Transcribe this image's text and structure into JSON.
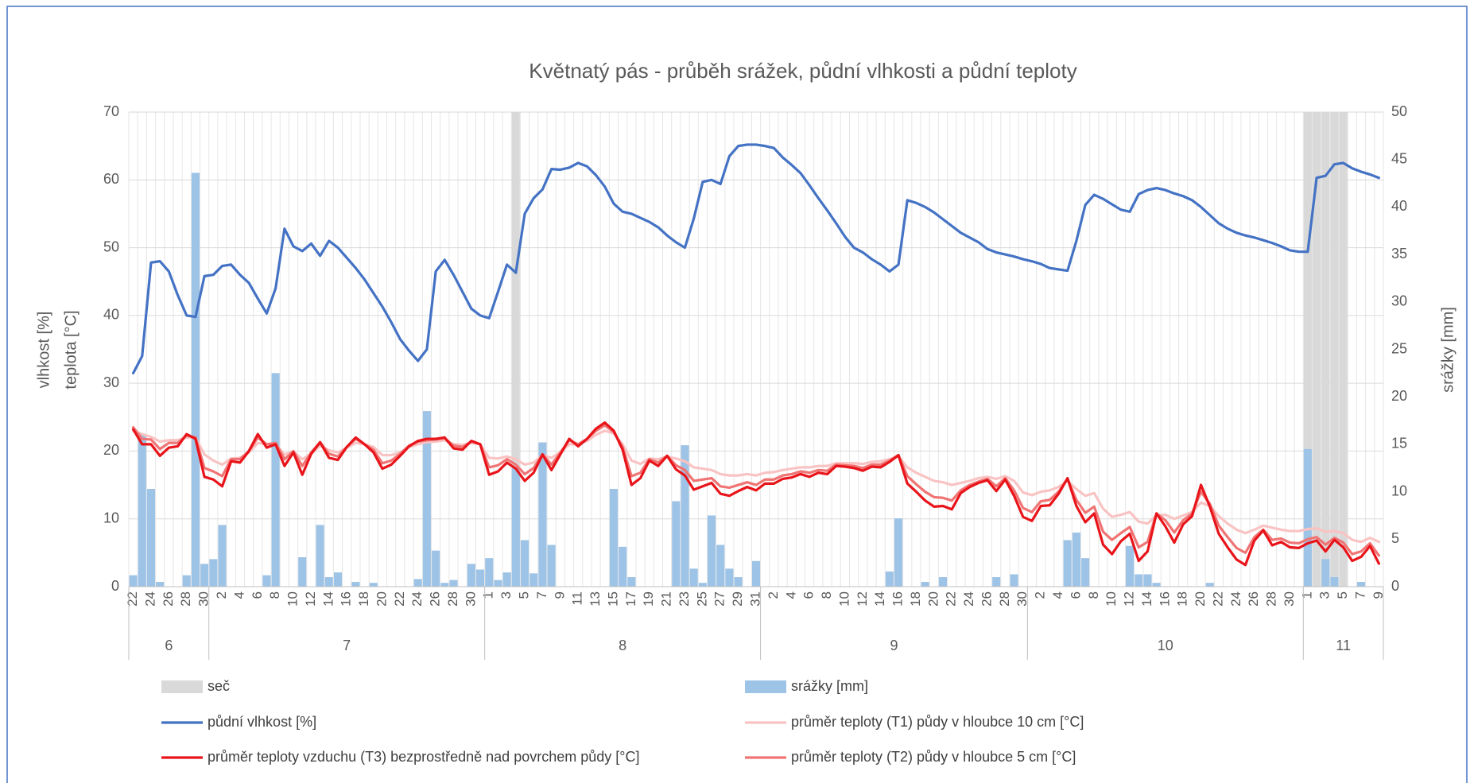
{
  "chart_data": {
    "type": "combo",
    "title": "Květnatý pás - průběh srážek, půdní vlhkosti a půdní teploty",
    "ylabel": [
      "vlhkost [%]",
      "teplota [°C]"
    ],
    "y2label": "srážky [mm]",
    "ylim": [
      0,
      70
    ],
    "yticks": [
      0,
      10,
      20,
      30,
      40,
      50,
      60,
      70
    ],
    "y2lim": [
      0,
      50
    ],
    "y2ticks": [
      0,
      5,
      10,
      15,
      20,
      25,
      30,
      35,
      40,
      45,
      50
    ],
    "grid": true,
    "legend": "bottom",
    "categories": [
      "22",
      null,
      "24",
      null,
      "26",
      null,
      "28",
      null,
      "30",
      null,
      "2",
      null,
      "4",
      null,
      "6",
      null,
      "8",
      null,
      "10",
      null,
      "12",
      null,
      "14",
      null,
      "16",
      null,
      "18",
      null,
      "20",
      null,
      "22",
      null,
      "24",
      null,
      "26",
      null,
      "28",
      null,
      "30",
      null,
      "1",
      null,
      "3",
      null,
      "5",
      null,
      "7",
      null,
      "9",
      null,
      "11",
      null,
      "13",
      null,
      "15",
      null,
      "17",
      null,
      "19",
      null,
      "21",
      null,
      "23",
      null,
      "25",
      null,
      "27",
      null,
      "29",
      null,
      "31",
      null,
      "2",
      null,
      "4",
      null,
      "6",
      null,
      "8",
      null,
      "10",
      null,
      "12",
      null,
      "14",
      null,
      "16",
      null,
      "18",
      null,
      "20",
      null,
      "22",
      null,
      "24",
      null,
      "26",
      null,
      "28",
      null,
      "30",
      null,
      "2",
      null,
      "4",
      null,
      "6",
      null,
      "8",
      null,
      "10",
      null,
      "12",
      null,
      "14",
      null,
      "16",
      null,
      "18",
      null,
      "20",
      null,
      "22",
      null,
      "24",
      null,
      "26",
      null,
      "28",
      null,
      "30",
      null,
      "1",
      null,
      "3",
      null,
      "5",
      null,
      "7",
      null,
      "9"
    ],
    "month_groups": [
      {
        "label": "6",
        "days": 9
      },
      {
        "label": "7",
        "days": 31
      },
      {
        "label": "8",
        "days": 31
      },
      {
        "label": "9",
        "days": 30
      },
      {
        "label": "10",
        "days": 31
      },
      {
        "label": "11",
        "days": 9
      }
    ],
    "series": [
      {
        "name": "seč",
        "type": "bar",
        "axis": "y2",
        "color": "#d9d9d9",
        "values": [
          null,
          null,
          null,
          null,
          null,
          null,
          null,
          null,
          null,
          null,
          null,
          null,
          null,
          null,
          null,
          null,
          null,
          null,
          null,
          null,
          null,
          null,
          null,
          null,
          null,
          null,
          null,
          null,
          null,
          null,
          null,
          null,
          null,
          null,
          null,
          null,
          null,
          null,
          null,
          null,
          null,
          null,
          null,
          50,
          null,
          null,
          null,
          null,
          null,
          null,
          null,
          null,
          null,
          null,
          null,
          null,
          null,
          null,
          null,
          null,
          null,
          null,
          null,
          null,
          null,
          null,
          null,
          null,
          null,
          null,
          null,
          null,
          null,
          null,
          null,
          null,
          null,
          null,
          null,
          null,
          null,
          null,
          null,
          null,
          null,
          null,
          null,
          null,
          null,
          null,
          null,
          null,
          null,
          null,
          null,
          null,
          null,
          null,
          null,
          null,
          null,
          null,
          null,
          null,
          null,
          null,
          null,
          null,
          null,
          null,
          null,
          null,
          null,
          null,
          null,
          null,
          null,
          null,
          null,
          null,
          null,
          null,
          null,
          null,
          null,
          null,
          null,
          null,
          null,
          null,
          null,
          null,
          50,
          50,
          50,
          50,
          50,
          null,
          null,
          null,
          null
        ]
      },
      {
        "name": "srážky [mm]",
        "type": "bar",
        "axis": "y2",
        "color": "#9dc3e6",
        "values": [
          1.2,
          16,
          10.3,
          0.5,
          0,
          0,
          1.2,
          43.6,
          2.4,
          2.9,
          6.5,
          0,
          0,
          0,
          0,
          1.2,
          22.5,
          0,
          0,
          3.1,
          0,
          6.5,
          1,
          1.5,
          0,
          0.5,
          0,
          0.4,
          0,
          0,
          0,
          0,
          0.8,
          18.5,
          3.8,
          0.4,
          0.7,
          0,
          2.4,
          1.8,
          3,
          0.7,
          1.5,
          12.5,
          4.9,
          1.4,
          15.2,
          4.4,
          0,
          0,
          0,
          0,
          0,
          0,
          10.3,
          4.2,
          1,
          0,
          0,
          0,
          0,
          9,
          14.9,
          1.9,
          0.4,
          7.5,
          4.4,
          1.9,
          1,
          0,
          2.7,
          0,
          0,
          0,
          0,
          0,
          0,
          0,
          0,
          0,
          0,
          0,
          0,
          0,
          0,
          1.6,
          7.2,
          0,
          0,
          0.5,
          0,
          1,
          0,
          0,
          0,
          0,
          0,
          1,
          0,
          1.3,
          0,
          0,
          0,
          0,
          0,
          4.9,
          5.7,
          3,
          0,
          0,
          0,
          0,
          4.3,
          1.3,
          1.3,
          0.4,
          0,
          0,
          0,
          0,
          0,
          0.4,
          0,
          0,
          0,
          0,
          0,
          0,
          0,
          0,
          0,
          0,
          14.5,
          0,
          2.9,
          1,
          0,
          0,
          0.5,
          0,
          0
        ]
      },
      {
        "name": "půdní vlhkost [%]",
        "type": "line",
        "color": "#4472c4",
        "values": [
          31.5,
          34,
          47.8,
          48,
          46.5,
          43,
          40,
          39.8,
          45.8,
          46,
          47.3,
          47.5,
          46,
          44.8,
          42.5,
          40.3,
          44,
          52.8,
          50.2,
          49.5,
          50.6,
          48.8,
          51,
          50,
          48.5,
          47,
          45.3,
          43.3,
          41.3,
          39,
          36.5,
          34.8,
          33.3,
          35,
          46.5,
          48.2,
          46,
          43.5,
          41,
          40,
          39.6,
          43.5,
          47.5,
          46.3,
          55,
          57.3,
          58.6,
          61.6,
          61.5,
          61.8,
          62.5,
          62,
          60.7,
          59,
          56.5,
          55.3,
          55,
          54.4,
          53.8,
          53,
          51.8,
          50.8,
          50,
          54.3,
          59.7,
          60,
          59.4,
          63.5,
          65,
          65.2,
          65.2,
          65,
          64.7,
          63.3,
          62.2,
          61,
          59.2,
          57.3,
          55.5,
          53.6,
          51.6,
          50,
          49.3,
          48.3,
          47.5,
          46.5,
          47.5,
          57,
          56.6,
          56,
          55.2,
          54.2,
          53.2,
          52.2,
          51.5,
          50.8,
          49.8,
          49.3,
          49,
          48.7,
          48.3,
          48,
          47.6,
          47,
          46.8,
          46.6,
          51,
          56.3,
          57.8,
          57.2,
          56.4,
          55.6,
          55.3,
          57.9,
          58.5,
          58.8,
          58.5,
          58,
          57.6,
          57,
          56,
          54.8,
          53.6,
          52.8,
          52.2,
          51.8,
          51.5,
          51.1,
          50.7,
          50.2,
          49.6,
          49.4,
          49.4,
          60.3,
          60.6,
          62.3,
          62.5,
          61.7,
          61.2,
          60.8,
          60.3
        ]
      },
      {
        "name": "průměr teploty (T1) půdy v hloubce 10 cm [°C]",
        "type": "line",
        "color": "#f9c3c3",
        "values": [
          23,
          22.5,
          22.1,
          21.4,
          21.6,
          21.6,
          22,
          22,
          19.5,
          18.6,
          18,
          18.9,
          19,
          19.8,
          21.2,
          21,
          21,
          19.5,
          19.9,
          18.8,
          19.6,
          20.8,
          20.1,
          19.8,
          20.5,
          21.2,
          21,
          20.6,
          19.4,
          19.4,
          19.8,
          20.6,
          21,
          21.3,
          21.4,
          21.6,
          21,
          20.9,
          21.2,
          21,
          19,
          18.9,
          19.2,
          18.8,
          18,
          18.3,
          19.4,
          19,
          19.8,
          21,
          21,
          21.5,
          22.4,
          23,
          22.6,
          21,
          18.6,
          18.1,
          18.9,
          18.8,
          19.2,
          18.9,
          18.5,
          17.6,
          17.4,
          17.2,
          16.6,
          16.4,
          16.4,
          16.6,
          16.4,
          16.8,
          16.9,
          17.2,
          17.4,
          17.6,
          17.6,
          17.8,
          17.8,
          18.2,
          18.2,
          18.2,
          18.1,
          18.4,
          18.5,
          18.8,
          19.2,
          17.6,
          16.8,
          16.2,
          15.6,
          15.4,
          15,
          15.3,
          15.6,
          16,
          16.2,
          15.9,
          16.3,
          15.6,
          13.9,
          13.5,
          14,
          14.2,
          14.7,
          15.6,
          14.4,
          13.4,
          13.8,
          11.5,
          10.3,
          10.6,
          11,
          9.6,
          9.3,
          10.5,
          10.6,
          10,
          10.5,
          11,
          12.4,
          11.9,
          10.4,
          9.3,
          8.4,
          7.9,
          8.4,
          9,
          8.7,
          8.4,
          8.2,
          8.2,
          8.5,
          8.6,
          8.1,
          8.2,
          7.9,
          6.9,
          6.6,
          7.2,
          6.6
        ]
      },
      {
        "name": "průměr teploty vzduchu (T3) bezprostředně nad povrchem půdy [°C]",
        "type": "line",
        "color": "#e8141a",
        "values": [
          23.2,
          21,
          21,
          19.3,
          20.5,
          20.7,
          22.5,
          21.8,
          16.2,
          15.8,
          14.8,
          18.5,
          18.3,
          20,
          22.5,
          20.5,
          21,
          17.8,
          19.8,
          16.5,
          19.6,
          21.3,
          19,
          18.7,
          20.6,
          22,
          21,
          19.8,
          17.4,
          18,
          19.3,
          20.7,
          21.5,
          21.8,
          21.8,
          22,
          20.4,
          20.2,
          21.5,
          21,
          16.5,
          17,
          18.3,
          17.4,
          15.6,
          16.8,
          19.5,
          17.2,
          19.5,
          21.8,
          20.7,
          21.8,
          23.3,
          24.2,
          23,
          20.2,
          15,
          16,
          18.6,
          17.8,
          19.3,
          17.3,
          16.4,
          14.3,
          14.8,
          15.3,
          13.7,
          13.4,
          14.1,
          14.7,
          14.2,
          15.2,
          15.2,
          15.9,
          16.1,
          16.6,
          16.2,
          16.8,
          16.6,
          17.8,
          17.7,
          17.5,
          17.1,
          17.7,
          17.6,
          18.4,
          19.4,
          15.2,
          14,
          12.7,
          11.8,
          11.9,
          11.4,
          13.8,
          14.7,
          15.3,
          15.7,
          14.1,
          15.8,
          13.4,
          10.3,
          9.7,
          11.9,
          12,
          13.7,
          16,
          11.9,
          9.5,
          10.8,
          6.2,
          4.8,
          6.7,
          7.8,
          3.8,
          5.2,
          10.8,
          8.9,
          6.5,
          9.2,
          10.4,
          15,
          11.8,
          7.8,
          5.8,
          4,
          3.2,
          6.8,
          8.3,
          6.1,
          6.6,
          5.8,
          5.7,
          6.4,
          6.8,
          5.2,
          6.9,
          5.8,
          3.8,
          4.4,
          6,
          3.4
        ]
      },
      {
        "name": "průměr teploty (T2) půdy v hloubce 5 cm [°C]",
        "type": "line",
        "color": "#f07474",
        "values": [
          23.5,
          21.8,
          21.7,
          20.3,
          21.2,
          21.2,
          22.3,
          22,
          17.5,
          17,
          16.3,
          18.8,
          18.8,
          20,
          22,
          21,
          21.2,
          18.8,
          20,
          17.8,
          19.8,
          21.3,
          19.6,
          19.2,
          20.6,
          21.8,
          21,
          20.2,
          18.2,
          18.6,
          19.6,
          20.8,
          21.4,
          21.6,
          21.7,
          21.9,
          20.8,
          20.6,
          21.4,
          21,
          17.6,
          17.9,
          18.8,
          18,
          16.6,
          17.5,
          19.5,
          18,
          19.8,
          21.6,
          21,
          21.8,
          23,
          23.8,
          22.8,
          20.6,
          16.3,
          16.8,
          18.8,
          18.3,
          19.3,
          17.9,
          17.2,
          15.6,
          15.8,
          16,
          14.8,
          14.6,
          15,
          15.4,
          15,
          15.8,
          15.8,
          16.4,
          16.6,
          17,
          16.8,
          17.2,
          17.1,
          18,
          17.9,
          17.8,
          17.5,
          18,
          18,
          18.6,
          19.4,
          16.3,
          15.1,
          14,
          13.2,
          13.1,
          12.7,
          14.2,
          15,
          15.5,
          15.9,
          14.8,
          16,
          14.2,
          11.6,
          11,
          12.6,
          12.8,
          14,
          15.9,
          12.8,
          10.9,
          11.8,
          8.1,
          6.9,
          7.9,
          8.8,
          5.8,
          6.6,
          10.8,
          9.8,
          8,
          9.8,
          10.8,
          14,
          12.2,
          9,
          7.3,
          5.7,
          5,
          7.3,
          8.4,
          6.9,
          7.1,
          6.5,
          6.4,
          7,
          7.3,
          6.2,
          7.2,
          6.5,
          4.8,
          5.2,
          6.4,
          4.6
        ]
      }
    ]
  }
}
